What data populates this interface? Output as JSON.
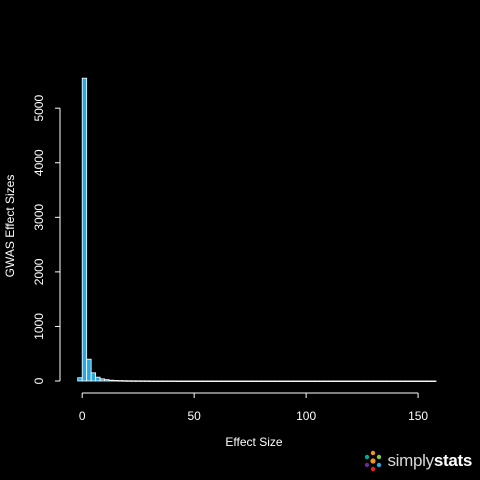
{
  "chart_data": {
    "type": "bar",
    "subtype": "histogram",
    "title": "",
    "xlabel": "Effect Size",
    "ylabel": "GWAS Effect Sizes",
    "xlim": [
      -5,
      158
    ],
    "ylim": [
      0,
      5700
    ],
    "x_ticks": [
      0,
      50,
      100,
      150
    ],
    "y_ticks": [
      0,
      1000,
      2000,
      3000,
      4000,
      5000
    ],
    "bin_width": 2,
    "bins_start": -2,
    "counts": [
      60,
      5550,
      400,
      150,
      70,
      40,
      25,
      15,
      10,
      8,
      6,
      5,
      4,
      4,
      3,
      3,
      2,
      2,
      2,
      2,
      2,
      2,
      1,
      1,
      1,
      1,
      1,
      1,
      1,
      1,
      1,
      1,
      1,
      1,
      1,
      1,
      1,
      1,
      1,
      1,
      1,
      1,
      1,
      1,
      1,
      1,
      1,
      1,
      1,
      1,
      1,
      1,
      1,
      1,
      1,
      1,
      1,
      1,
      1,
      1,
      1,
      1,
      1,
      1,
      1,
      1,
      1,
      1,
      1,
      1,
      1,
      1,
      1,
      1,
      1,
      1,
      1,
      1,
      1,
      1
    ],
    "bar_color": "#29a8e0",
    "bar_edge_color": "#ffffff",
    "background": "#000000",
    "grid": false
  },
  "logo": {
    "text_light": "simply",
    "text_bold": "stats",
    "icon": "molecule-dots-icon",
    "dot_colors": [
      "#f7941d",
      "#8dc63f",
      "#29a8e0",
      "#ed1c24",
      "#662d91",
      "#00a99d"
    ]
  }
}
